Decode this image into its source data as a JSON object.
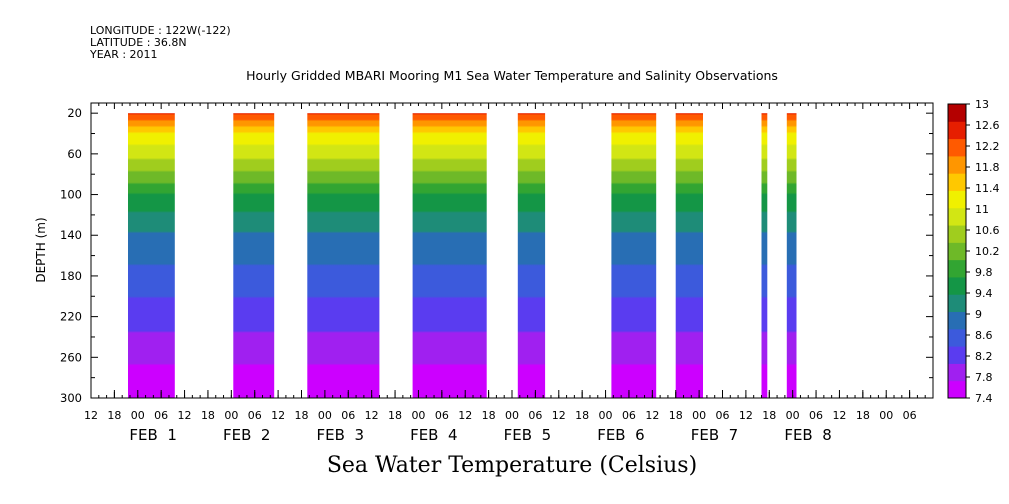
{
  "header": {
    "longitude": "LONGITUDE : 122W(-122)",
    "latitude": "LATITUDE : 36.8N",
    "year": "YEAR : 2011"
  },
  "chart_data": {
    "type": "heatmap",
    "title": "Hourly Gridded MBARI Mooring M1 Sea Water Temperature and Salinity Observations",
    "xlabel": "Sea Water Temperature (Celsius)",
    "ylabel": "DEPTH (m)",
    "y_ticks": [
      20,
      60,
      100,
      140,
      180,
      220,
      260,
      300
    ],
    "ylim": [
      300,
      10
    ],
    "x_hour_ticks": [
      "12",
      "18",
      "00",
      "06",
      "12",
      "18",
      "00",
      "06",
      "12",
      "18",
      "00",
      "06",
      "12",
      "18",
      "00",
      "06",
      "12",
      "18",
      "00",
      "06",
      "12",
      "18",
      "00",
      "06",
      "12",
      "18",
      "00",
      "06",
      "12",
      "18",
      "00",
      "06",
      "12",
      "18",
      "00",
      "06"
    ],
    "x_day_labels": [
      "FEB  1",
      "FEB  2",
      "FEB  3",
      "FEB  4",
      "FEB  5",
      "FEB  6",
      "FEB  7",
      "FEB  8"
    ],
    "xlim_hours_since_feb1_00": [
      6,
      222
    ],
    "colorbar": {
      "levels": [
        13,
        12.6,
        12.2,
        11.8,
        11.4,
        11,
        10.6,
        10.2,
        9.8,
        9.4,
        9,
        8.6,
        8.2,
        7.8,
        7.4
      ],
      "range": [
        7.4,
        13
      ]
    },
    "data_segments": [
      {
        "start_hour": 15.5,
        "end_hour": 27.5
      },
      {
        "start_hour": 42.5,
        "end_hour": 53.0
      },
      {
        "start_hour": 61.5,
        "end_hour": 80.0
      },
      {
        "start_hour": 88.5,
        "end_hour": 107.5
      },
      {
        "start_hour": 115.5,
        "end_hour": 122.5
      },
      {
        "start_hour": 139.5,
        "end_hour": 151.0
      },
      {
        "start_hour": 156.0,
        "end_hour": 163.0
      },
      {
        "start_hour": 178.0,
        "end_hour": 179.5
      },
      {
        "start_hour": 184.5,
        "end_hour": 187.0
      }
    ],
    "temperature_profile": [
      {
        "depth": 20,
        "value": 12.4
      },
      {
        "depth": 40,
        "value": 11.3
      },
      {
        "depth": 60,
        "value": 10.8
      },
      {
        "depth": 80,
        "value": 10.3
      },
      {
        "depth": 100,
        "value": 9.7
      },
      {
        "depth": 120,
        "value": 9.3
      },
      {
        "depth": 140,
        "value": 9.0
      },
      {
        "depth": 160,
        "value": 8.8
      },
      {
        "depth": 180,
        "value": 8.6
      },
      {
        "depth": 200,
        "value": 8.4
      },
      {
        "depth": 220,
        "value": 8.2
      },
      {
        "depth": 240,
        "value": 8.0
      },
      {
        "depth": 260,
        "value": 7.8
      },
      {
        "depth": 280,
        "value": 7.6
      },
      {
        "depth": 300,
        "value": 7.4
      }
    ]
  }
}
